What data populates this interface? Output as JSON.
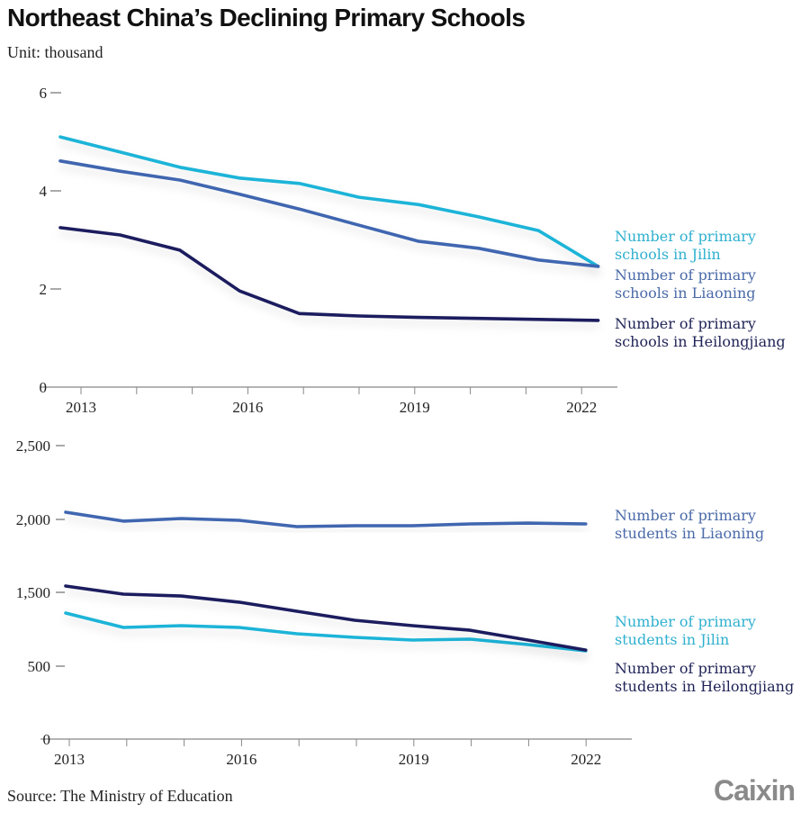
{
  "header": {
    "title": "Northeast China’s Declining Primary Schools",
    "unit": "Unit: thousand"
  },
  "footer": {
    "source": "Source: The Ministry of Education",
    "logo": "Caixin"
  },
  "colors": {
    "jilin": "#1cb4d8",
    "liaoning": "#3f66b0",
    "heilongjiang": "#1b1f5e",
    "jilin_label": "#2fb0cf",
    "liaoning_label": "#4a6aa8",
    "heilongjiang_label": "#1f2356",
    "axis": "#888888"
  },
  "chart_data": [
    {
      "type": "line",
      "title": "Number of primary schools",
      "xlabel": "",
      "ylabel": "thousand",
      "x": [
        2013,
        2014,
        2015,
        2016,
        2017,
        2018,
        2019,
        2020,
        2021,
        2022
      ],
      "x_tick_labels": [
        "2013",
        "2016",
        "2019",
        "2022"
      ],
      "x_tick_years": [
        2013,
        2016,
        2019,
        2022
      ],
      "y_ticks": [
        0,
        2,
        4,
        6
      ],
      "y_tick_labels": [
        "0",
        "2",
        "4",
        "6"
      ],
      "ylim": [
        0,
        6
      ],
      "grid": false,
      "legend": "right-inline",
      "series": [
        {
          "key": "jilin",
          "name": "Number of primary schools in Jilin",
          "label_lines": [
            "Number of primary",
            "schools in Jilin"
          ],
          "values": [
            5.1,
            4.79,
            4.48,
            4.26,
            4.15,
            3.87,
            3.72,
            3.47,
            3.19,
            2.46
          ]
        },
        {
          "key": "liaoning",
          "name": "Number of primary schools in Liaoning",
          "label_lines": [
            "Number of primary",
            "schools in Liaoning"
          ],
          "values": [
            4.61,
            4.4,
            4.22,
            3.93,
            3.63,
            3.3,
            2.97,
            2.83,
            2.59,
            2.46
          ]
        },
        {
          "key": "heilongjiang",
          "name": "Number of primary schools in Heilongjiang",
          "label_lines": [
            "Number of primary",
            "schools in Heilongjiang"
          ],
          "values": [
            3.25,
            3.1,
            2.79,
            1.96,
            1.5,
            1.45,
            1.42,
            1.4,
            1.38,
            1.36
          ]
        }
      ]
    },
    {
      "type": "line",
      "title": "Number of primary students",
      "xlabel": "",
      "ylabel": "thousand",
      "x": [
        2013,
        2014,
        2015,
        2016,
        2017,
        2018,
        2019,
        2020,
        2021,
        2022
      ],
      "x_tick_labels": [
        "2013",
        "2016",
        "2019",
        "2022"
      ],
      "x_tick_years": [
        2013,
        2016,
        2019,
        2022
      ],
      "y_tick_labels": [
        "0",
        "500",
        "1,500",
        "2,000",
        "2,500"
      ],
      "ylim": [
        0,
        2500
      ],
      "grid": false,
      "legend": "right-inline",
      "series": [
        {
          "key": "liaoning",
          "name": "Number of primary students in Liaoning",
          "label_lines": [
            "Number of primary",
            "students in Liaoning"
          ],
          "values": [
            2046,
            1985,
            2003,
            1991,
            1948,
            1954,
            1954,
            1966,
            1972,
            1966
          ]
        },
        {
          "key": "jilin",
          "name": "Number of primary students in Jilin",
          "label_lines": [
            "Number of primary",
            "students in Jilin"
          ],
          "values": [
            1359,
            1261,
            1273,
            1261,
            1218,
            1193,
            1175,
            1181,
            1144,
            1101
          ]
        },
        {
          "key": "heilongjiang",
          "name": "Number of primary students in Heilongjiang",
          "label_lines": [
            "Number of primary",
            "students in Heilongjiang"
          ],
          "values": [
            1543,
            1488,
            1475,
            1433,
            1371,
            1310,
            1273,
            1242,
            1175,
            1107
          ]
        }
      ]
    }
  ]
}
